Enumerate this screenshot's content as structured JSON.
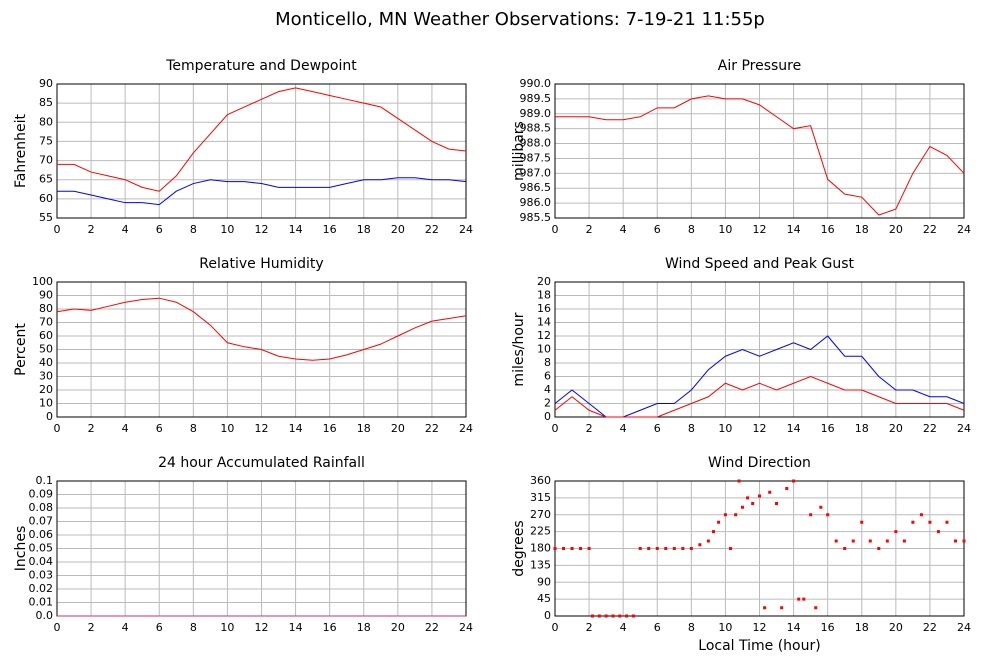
{
  "title": "Monticello, MN Weather Observations: 7-19-21 11:55p",
  "chart_data": [
    {
      "type": "line",
      "title": "Temperature and Dewpoint",
      "ylabel": "Fahrenheit",
      "x": [
        0,
        1,
        2,
        3,
        4,
        5,
        6,
        7,
        8,
        9,
        10,
        11,
        12,
        13,
        14,
        15,
        16,
        17,
        18,
        19,
        20,
        21,
        22,
        23,
        24
      ],
      "series": [
        {
          "color": "#ff0000",
          "values": [
            69,
            69,
            67,
            66,
            65,
            63,
            62,
            66,
            72,
            77,
            82,
            84,
            86,
            88,
            89,
            88,
            87,
            86,
            85,
            84,
            81,
            78,
            75,
            73,
            72.5
          ]
        },
        {
          "color": "#0000ff",
          "values": [
            62,
            62,
            61,
            60,
            59,
            59,
            58.5,
            62,
            64,
            65,
            64.5,
            64.5,
            64,
            63,
            63,
            63,
            63,
            64,
            65,
            65,
            65.5,
            65.5,
            65,
            65,
            64.5
          ]
        }
      ],
      "xlim": [
        0,
        24
      ],
      "xticks": [
        0,
        2,
        4,
        6,
        8,
        10,
        12,
        14,
        16,
        18,
        20,
        22,
        24
      ],
      "ylim": [
        55,
        90
      ],
      "yticks": [
        55,
        60,
        65,
        70,
        75,
        80,
        85,
        90
      ],
      "grid": true
    },
    {
      "type": "line",
      "title": "Air Pressure",
      "ylabel": "millibars",
      "x": [
        0,
        1,
        2,
        3,
        4,
        5,
        6,
        7,
        8,
        9,
        10,
        11,
        12,
        13,
        14,
        15,
        16,
        17,
        18,
        19,
        20,
        21,
        22,
        23,
        24
      ],
      "series": [
        {
          "color": "#ff0000",
          "values": [
            988.9,
            988.9,
            988.9,
            988.8,
            988.8,
            988.9,
            989.2,
            989.2,
            989.5,
            989.6,
            989.5,
            989.5,
            989.3,
            988.9,
            988.5,
            988.6,
            986.8,
            986.3,
            986.2,
            985.6,
            985.8,
            987.0,
            987.9,
            987.6,
            987.0
          ]
        }
      ],
      "xlim": [
        0,
        24
      ],
      "xticks": [
        0,
        2,
        4,
        6,
        8,
        10,
        12,
        14,
        16,
        18,
        20,
        22,
        24
      ],
      "ylim": [
        985.5,
        990
      ],
      "yticks": [
        985.5,
        {
          "value": 986,
          "label": "986.0"
        },
        986.5,
        {
          "value": 987,
          "label": "987.0"
        },
        987.5,
        {
          "value": 988,
          "label": "988.0"
        },
        988.5,
        {
          "value": 989,
          "label": "989.0"
        },
        989.5,
        {
          "value": 990,
          "label": "990.0"
        }
      ],
      "grid": true
    },
    {
      "type": "line",
      "title": "Relative Humidity",
      "ylabel": "Percent",
      "x": [
        0,
        1,
        2,
        3,
        4,
        5,
        6,
        7,
        8,
        9,
        10,
        11,
        12,
        13,
        14,
        15,
        16,
        17,
        18,
        19,
        20,
        21,
        22,
        23,
        24
      ],
      "series": [
        {
          "color": "#ff0000",
          "values": [
            78,
            80,
            79,
            82,
            85,
            87,
            88,
            85,
            78,
            68,
            55,
            52,
            50,
            45,
            43,
            42,
            43,
            46,
            50,
            54,
            60,
            66,
            71,
            73,
            75
          ]
        }
      ],
      "xlim": [
        0,
        24
      ],
      "xticks": [
        0,
        2,
        4,
        6,
        8,
        10,
        12,
        14,
        16,
        18,
        20,
        22,
        24
      ],
      "ylim": [
        0,
        100
      ],
      "yticks": [
        0,
        10,
        20,
        30,
        40,
        50,
        60,
        70,
        80,
        90,
        100
      ],
      "grid": true
    },
    {
      "type": "line",
      "title": "Wind Speed and Peak Gust",
      "ylabel": "miles/hour",
      "x": [
        0,
        1,
        2,
        3,
        4,
        5,
        6,
        7,
        8,
        9,
        10,
        11,
        12,
        13,
        14,
        15,
        16,
        17,
        18,
        19,
        20,
        21,
        22,
        23,
        24
      ],
      "series": [
        {
          "color": "#0000ff",
          "values": [
            2,
            4,
            2,
            0,
            0,
            1,
            2,
            2,
            4,
            7,
            9,
            10,
            9,
            10,
            11,
            10,
            12,
            9,
            9,
            6,
            4,
            4,
            3,
            3,
            2
          ]
        },
        {
          "color": "#ff0000",
          "values": [
            1,
            3,
            1,
            0,
            0,
            0,
            0,
            1,
            2,
            3,
            5,
            4,
            5,
            4,
            5,
            6,
            5,
            4,
            4,
            3,
            2,
            2,
            2,
            2,
            1
          ]
        }
      ],
      "xlim": [
        0,
        24
      ],
      "xticks": [
        0,
        2,
        4,
        6,
        8,
        10,
        12,
        14,
        16,
        18,
        20,
        22,
        24
      ],
      "ylim": [
        0,
        20
      ],
      "yticks": [
        0,
        2,
        4,
        6,
        8,
        10,
        12,
        14,
        16,
        18,
        20
      ],
      "grid": true
    },
    {
      "type": "line",
      "title": "24 hour Accumulated Rainfall",
      "ylabel": "Inches",
      "x": [
        0,
        24
      ],
      "series": [
        {
          "color": "#cc3366",
          "values": [
            0,
            0
          ]
        }
      ],
      "xlim": [
        0,
        24
      ],
      "xticks": [
        0,
        2,
        4,
        6,
        8,
        10,
        12,
        14,
        16,
        18,
        20,
        22,
        24
      ],
      "ylim": [
        0,
        0.1
      ],
      "yticks": [
        {
          "value": 0,
          "label": "0.0"
        },
        0.01,
        0.02,
        0.03,
        0.04,
        0.05,
        0.06,
        0.07,
        0.08,
        0.09,
        0.1
      ],
      "grid": true
    },
    {
      "type": "scatter",
      "title": "Wind Direction",
      "ylabel": "degrees",
      "xlabel": "Local Time (hour)",
      "x": [
        0,
        0.5,
        1,
        1.5,
        2,
        2.2,
        2.6,
        3,
        3.4,
        3.8,
        4.2,
        4.6,
        5,
        5.5,
        6,
        6.5,
        7,
        7.5,
        8,
        8.5,
        9,
        9.3,
        9.6,
        10,
        10.3,
        10.6,
        10.8,
        11,
        11.3,
        11.6,
        12,
        12.3,
        12.6,
        13,
        13.3,
        13.6,
        14,
        14.3,
        14.6,
        15,
        15.3,
        15.6,
        16,
        16.5,
        17,
        17.5,
        18,
        18.5,
        19,
        19.5,
        20,
        20.5,
        21,
        21.5,
        22,
        22.5,
        23,
        23.5,
        24
      ],
      "series": [
        {
          "color": "#ff0000",
          "values": [
            180,
            180,
            180,
            180,
            180,
            0,
            0,
            0,
            0,
            0,
            0,
            0,
            180,
            180,
            180,
            180,
            180,
            180,
            180,
            190,
            200,
            225,
            250,
            270,
            180,
            270,
            360,
            290,
            315,
            300,
            320,
            22,
            330,
            300,
            22,
            340,
            360,
            45,
            45,
            270,
            22,
            290,
            270,
            200,
            180,
            200,
            250,
            200,
            180,
            200,
            225,
            200,
            250,
            270,
            250,
            225,
            250,
            200,
            200
          ]
        }
      ],
      "xlim": [
        0,
        24
      ],
      "xticks": [
        0,
        2,
        4,
        6,
        8,
        10,
        12,
        14,
        16,
        18,
        20,
        22,
        24
      ],
      "ylim": [
        0,
        360
      ],
      "yticks": [
        0,
        45,
        90,
        135,
        180,
        225,
        270,
        315,
        360
      ],
      "grid": true
    }
  ]
}
